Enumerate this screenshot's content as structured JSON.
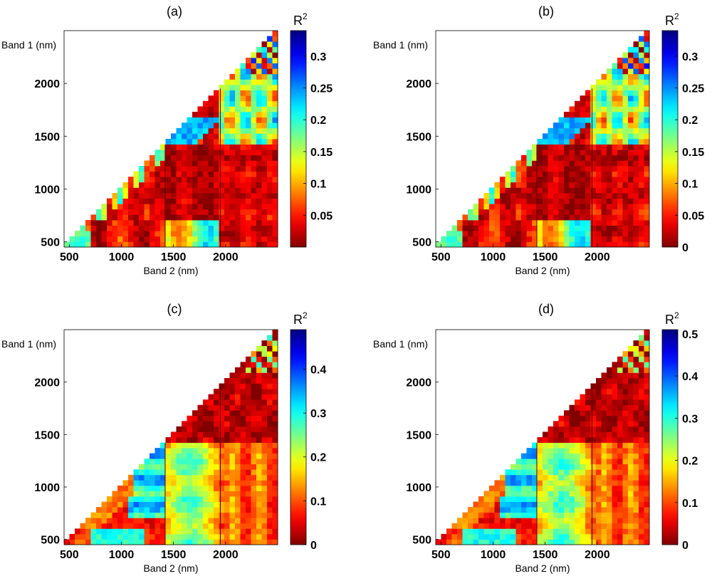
{
  "chart_data": [
    {
      "type": "heatmap",
      "title": "(a)",
      "xlabel": "Band 2 (nm)",
      "ylabel": "Band 1 (nm)",
      "xlim": [
        450,
        2500
      ],
      "ylim": [
        450,
        2500
      ],
      "xticks": [
        "500",
        "1000",
        "1500",
        "2000"
      ],
      "yticks": [
        "500",
        "1000",
        "1500",
        "2000"
      ],
      "colorbar": {
        "label": "R",
        "superscript": "2",
        "range": [
          0,
          0.34
        ],
        "ticks": [
          "0.05",
          "0.1",
          "0.15",
          "0.2",
          "0.25",
          "0.3"
        ]
      }
    },
    {
      "type": "heatmap",
      "title": "(b)",
      "xlabel": "Band 2 (nm)",
      "ylabel": "Band 1 (nm)",
      "xlim": [
        450,
        2500
      ],
      "ylim": [
        450,
        2500
      ],
      "xticks": [
        "500",
        "1000",
        "1500",
        "2000"
      ],
      "yticks": [
        "500",
        "1000",
        "1500",
        "2000"
      ],
      "colorbar": {
        "label": "R",
        "superscript": "2",
        "range": [
          0,
          0.34
        ],
        "ticks": [
          "0",
          "0.05",
          "0.1",
          "0.15",
          "0.2",
          "0.25",
          "0.3"
        ]
      }
    },
    {
      "type": "heatmap",
      "title": "(c)",
      "xlabel": "Band 2 (nm)",
      "ylabel": "Band 1 (nm)",
      "xlim": [
        450,
        2500
      ],
      "ylim": [
        450,
        2500
      ],
      "xticks": [
        "500",
        "1000",
        "1500",
        "2000"
      ],
      "yticks": [
        "500",
        "1000",
        "1500",
        "2000"
      ],
      "colorbar": {
        "label": "R",
        "superscript": "2",
        "range": [
          0,
          0.49
        ],
        "ticks": [
          "0",
          "0.1",
          "0.2",
          "0.3",
          "0.4"
        ]
      }
    },
    {
      "type": "heatmap",
      "title": "(d)",
      "xlabel": "Band 2 (nm)",
      "ylabel": "Band 1 (nm)",
      "xlim": [
        450,
        2500
      ],
      "ylim": [
        450,
        2500
      ],
      "xticks": [
        "500",
        "1000",
        "1500",
        "2000"
      ],
      "yticks": [
        "500",
        "1000",
        "1500",
        "2000"
      ],
      "colorbar": {
        "label": "R",
        "superscript": "2",
        "range": [
          0,
          0.51
        ],
        "ticks": [
          "0",
          "0.1",
          "0.2",
          "0.3",
          "0.4",
          "0.5"
        ]
      }
    }
  ]
}
